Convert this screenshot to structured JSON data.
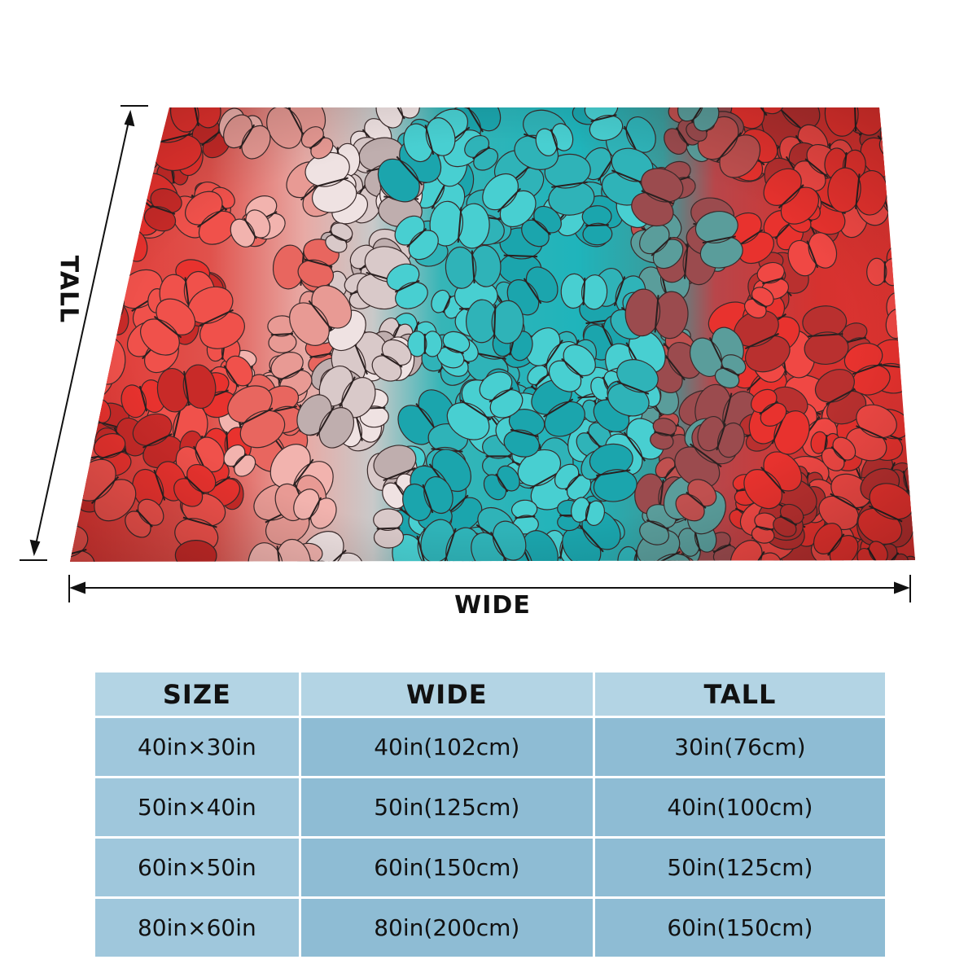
{
  "diagram": {
    "wide_label": "WIDE",
    "tall_label": "TALL"
  },
  "colors": {
    "header_bg": "#b3d4e4",
    "cell_bg_primary": "#9fc7dc",
    "cell_bg_secondary": "#8ebcd4",
    "butterfly_red": "#e8322e",
    "butterfly_pink": "#e89a94",
    "butterfly_teal": "#2fb3b8",
    "arrow": "#111111"
  },
  "size_table": {
    "headers": [
      "SIZE",
      "WIDE",
      "TALL"
    ],
    "rows": [
      [
        "40in×30in",
        "40in(102cm)",
        "30in(76cm)"
      ],
      [
        "50in×40in",
        "50in(125cm)",
        "40in(100cm)"
      ],
      [
        "60in×50in",
        "60in(150cm)",
        "50in(125cm)"
      ],
      [
        "80in×60in",
        "80in(200cm)",
        "60in(150cm)"
      ]
    ]
  }
}
